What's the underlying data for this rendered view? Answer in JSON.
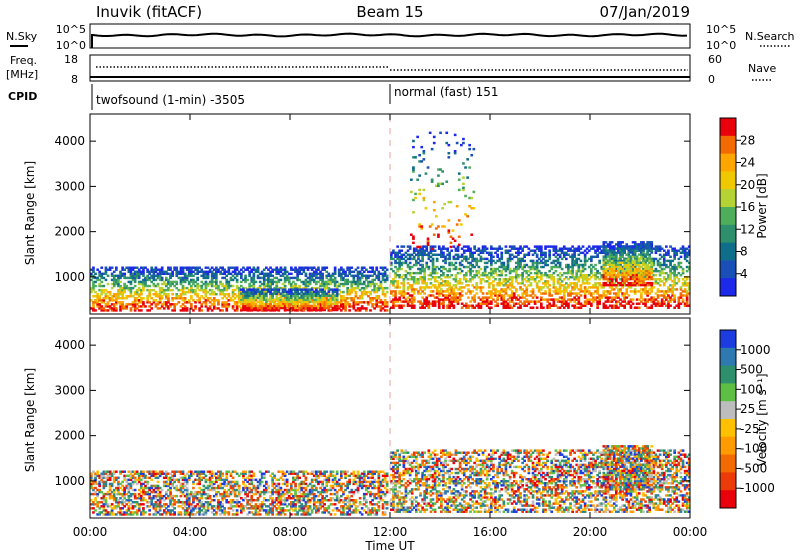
{
  "header": {
    "station": "Inuvik (fitACF)",
    "beam": "Beam 15",
    "date": "07/Jan/2019"
  },
  "noise_panel": {
    "left_label": "N.Sky",
    "right_label": "N.Search",
    "left_ticks": [
      "10^5",
      "10^0"
    ],
    "right_ticks": [
      "10^5",
      "10^0"
    ]
  },
  "freq_panel": {
    "left_label_line1": "Freq.",
    "left_label_line2": "[MHz]",
    "right_label": "Nave",
    "left_ticks": [
      "18",
      "8"
    ],
    "right_ticks": [
      "60",
      "0"
    ]
  },
  "cpid": {
    "label": "CPID",
    "segments": [
      {
        "text": "twofsound (1-min) -3505",
        "start_hour": 0
      },
      {
        "text": "normal (fast) 151",
        "start_hour": 12
      }
    ]
  },
  "chart_data": [
    {
      "type": "heatmap",
      "name": "power",
      "ylabel": "Slant Range [km]",
      "xlabel": "Time UT",
      "yticks": [
        1000,
        2000,
        3000,
        4000
      ],
      "ylim": [
        180,
        4600
      ],
      "xlim_hours": [
        0,
        24
      ],
      "xtick_labels": [
        "00:00",
        "04:00",
        "08:00",
        "12:00",
        "16:00",
        "20:00",
        "00:00"
      ],
      "colorbar": {
        "label": "Power [dB]",
        "ticks": [
          "28",
          "24",
          "20",
          "16",
          "12",
          "8",
          "4"
        ],
        "colors": [
          "#e8000b",
          "#f26a00",
          "#ffa500",
          "#f0c800",
          "#b5d334",
          "#4fae5b",
          "#2e8f6d",
          "#0f6e8a",
          "#1a4fb8",
          "#1d29e8"
        ]
      },
      "regions": [
        {
          "t0": 0.0,
          "t1": 11.9,
          "r0": 240,
          "r1": 1250,
          "fill": 0.55
        },
        {
          "t0": 6.0,
          "t1": 9.9,
          "r0": 250,
          "r1": 750,
          "fill": 0.8
        },
        {
          "t0": 12.0,
          "t1": 24.0,
          "r0": 300,
          "r1": 1700,
          "fill": 0.5
        },
        {
          "t0": 12.8,
          "t1": 15.5,
          "r0": 1600,
          "r1": 4200,
          "fill": 0.06
        },
        {
          "t0": 20.5,
          "t1": 22.5,
          "r0": 800,
          "r1": 1800,
          "fill": 0.7
        }
      ]
    },
    {
      "type": "heatmap",
      "name": "velocity",
      "ylabel": "Slant Range [km]",
      "xlabel": "Time UT",
      "yticks": [
        1000,
        2000,
        3000,
        4000
      ],
      "ylim": [
        180,
        4600
      ],
      "xlim_hours": [
        0,
        24
      ],
      "xtick_labels": [
        "00:00",
        "04:00",
        "08:00",
        "12:00",
        "16:00",
        "20:00",
        "00:00"
      ],
      "colorbar": {
        "label": "Velocity [m s⁻¹]",
        "ticks": [
          "1000",
          "500",
          "100",
          "25",
          "-25",
          "-100",
          "-500",
          "-1000"
        ],
        "colors": [
          "#1d3ce0",
          "#2e7ab0",
          "#2e8f6d",
          "#5fbf44",
          "#bdbdbd",
          "#ffc000",
          "#ff9a00",
          "#f26a00",
          "#ea3b08",
          "#e8000b"
        ]
      },
      "regions": [
        {
          "t0": 0.0,
          "t1": 11.9,
          "r0": 240,
          "r1": 1250,
          "fill": 0.55
        },
        {
          "t0": 12.0,
          "t1": 24.0,
          "r0": 300,
          "r1": 1700,
          "fill": 0.5
        },
        {
          "t0": 20.5,
          "t1": 22.5,
          "r0": 800,
          "r1": 1800,
          "fill": 0.7
        }
      ]
    }
  ]
}
